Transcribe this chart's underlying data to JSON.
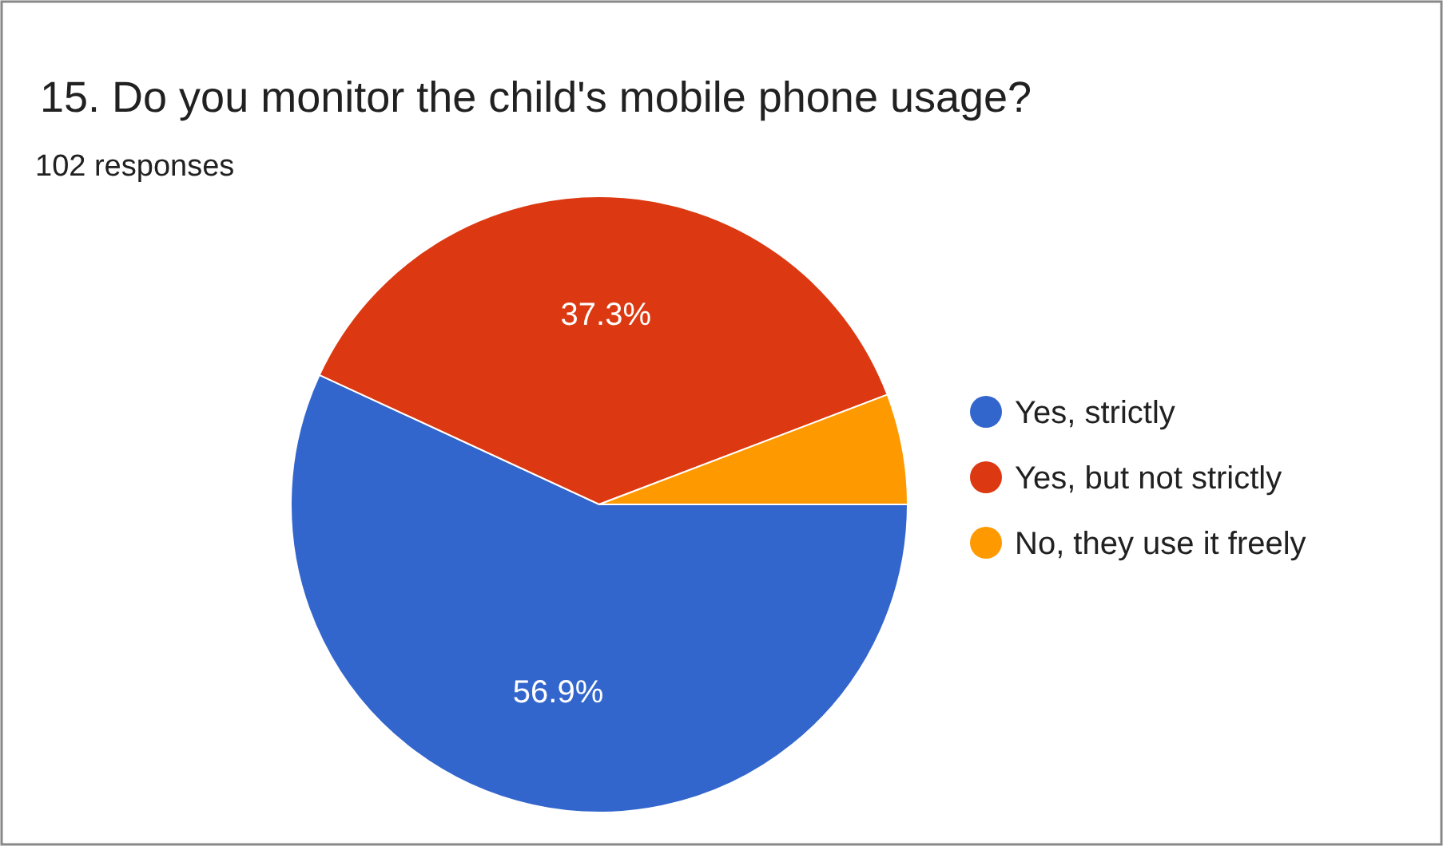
{
  "chart_data": {
    "type": "pie",
    "title": "15.  Do you monitor the child's mobile phone usage?",
    "subtitle": "102 responses",
    "categories": [
      "Yes, strictly",
      "Yes, but not strictly",
      "No, they use it freely"
    ],
    "values": [
      56.9,
      37.3,
      5.8
    ],
    "colors": [
      "#3366cc",
      "#dc3912",
      "#ff9900"
    ],
    "value_labels": [
      "56.9%",
      "37.3%",
      null
    ],
    "legend": "right"
  }
}
